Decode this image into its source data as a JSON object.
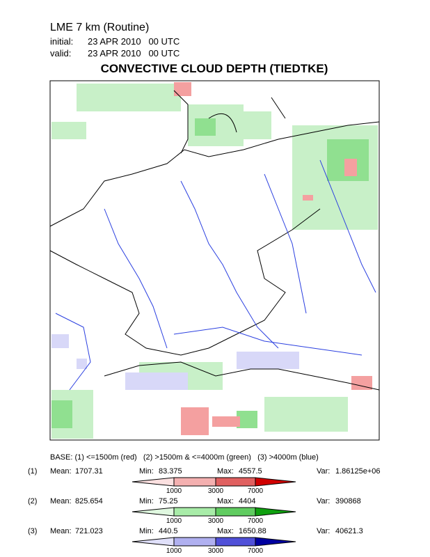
{
  "header": {
    "model": "LME 7 km (Routine)",
    "initial_label": "initial:",
    "initial": "23 APR 2010   00 UTC",
    "valid_label": "valid:",
    "valid": "23 APR 2010   00 UTC"
  },
  "title": "CONVECTIVE CLOUD DEPTH (TIEDTKE)",
  "legend": {
    "base": "BASE: (1) <=1500m (red)   (2) >1500m & <=4000m (green)   (3) >4000m (blue)",
    "rows": [
      {
        "index": "(1)",
        "mean_label": "Mean:",
        "mean": "1707.31",
        "min_label": "Min:",
        "min": "83.375",
        "max_label": "Max:",
        "max": "4557.5",
        "var_label": "Var:",
        "var": "1.86125e+06",
        "ticks": [
          "1000",
          "3000",
          "7000"
        ]
      },
      {
        "index": "(2)",
        "mean_label": "Mean:",
        "mean": "825.654",
        "min_label": "Min:",
        "min": "75.25",
        "max_label": "Max:",
        "max": "4404",
        "var_label": "Var:",
        "var": "390868",
        "ticks": [
          "1000",
          "3000",
          "7000"
        ]
      },
      {
        "index": "(3)",
        "mean_label": "Mean:",
        "mean": "721.023",
        "min_label": "Min:",
        "min": "440.5",
        "max_label": "Max:",
        "max": "1650.88",
        "var_label": "Var:",
        "var": "40621.3",
        "ticks": [
          "1000",
          "3000",
          "7000"
        ]
      }
    ]
  }
}
